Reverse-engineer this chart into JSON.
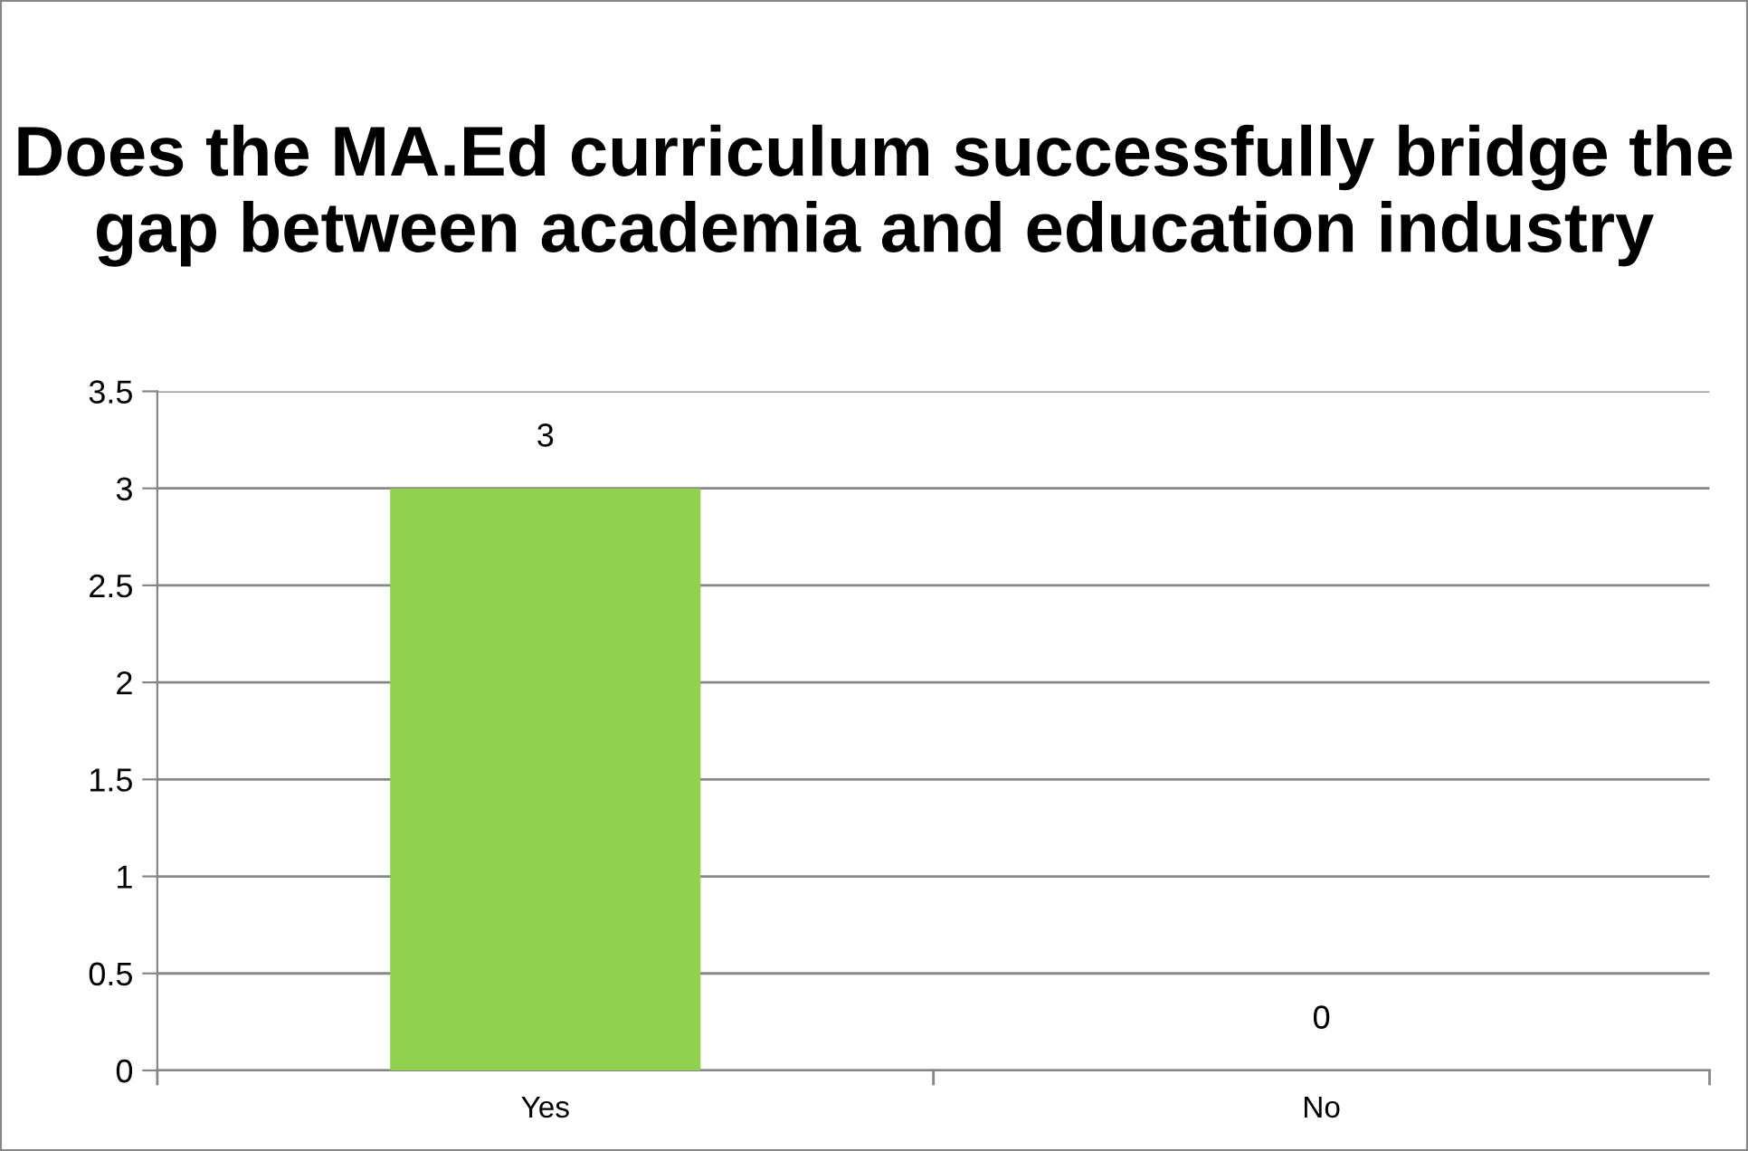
{
  "chart_data": {
    "type": "bar",
    "title": "Does the MA.Ed curriculum successfully bridge the gap between academia and education industry",
    "categories": [
      "Yes",
      "No"
    ],
    "values": [
      3,
      0
    ],
    "color": "#92d050",
    "ylim": [
      0,
      3.5
    ],
    "yticks": [
      0,
      0.5,
      1,
      1.5,
      2,
      2.5,
      3,
      3.5
    ],
    "grid": "y",
    "data_labels": true
  }
}
